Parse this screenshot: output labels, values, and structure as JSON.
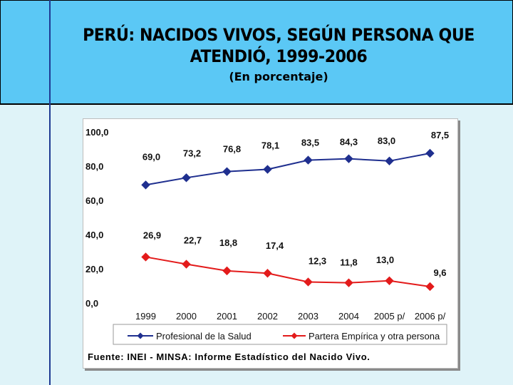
{
  "slide": {
    "title_line1": "PERÚ: NACIDOS VIVOS, SEGÚN PERSONA QUE",
    "title_line2": "ATENDIÓ, 1999-2006",
    "subtitle": "(En porcentaje)",
    "source": "Fuente: INEI - MINSA: Informe Estadístico del Nacido Vivo."
  },
  "colors": {
    "header_bg": "#5bc8f5",
    "series_salud": "#1f2f8f",
    "series_partera": "#e31b1b"
  },
  "chart_data": {
    "type": "line",
    "title": "PERÚ: NACIDOS VIVOS, SEGÚN PERSONA QUE ATENDIÓ, 1999-2006",
    "xlabel": "",
    "ylabel": "",
    "ylim": [
      0,
      100
    ],
    "yticks": [
      "100,0",
      "80,0",
      "60,0",
      "40,0",
      "20,0",
      "0,0"
    ],
    "categories": [
      "1999",
      "2000",
      "2001",
      "2002",
      "2003",
      "2004",
      "2005 p/",
      "2006 p/"
    ],
    "series": [
      {
        "name": "Profesional de la Salud",
        "values": [
          69.0,
          73.2,
          76.8,
          78.1,
          83.5,
          84.3,
          83.0,
          87.5
        ],
        "labels": [
          "69,0",
          "73,2",
          "76,8",
          "78,1",
          "83,5",
          "84,3",
          "83,0",
          "87,5"
        ],
        "marker": "diamond"
      },
      {
        "name": "Partera Empírica y otra persona",
        "values": [
          26.9,
          22.7,
          18.8,
          17.4,
          12.3,
          11.8,
          13.0,
          9.6
        ],
        "labels": [
          "26,9",
          "22,7",
          "18,8",
          "17,4",
          "12,3",
          "11,8",
          "13,0",
          "9,6"
        ],
        "marker": "diamond"
      }
    ],
    "legend": "bottom"
  }
}
